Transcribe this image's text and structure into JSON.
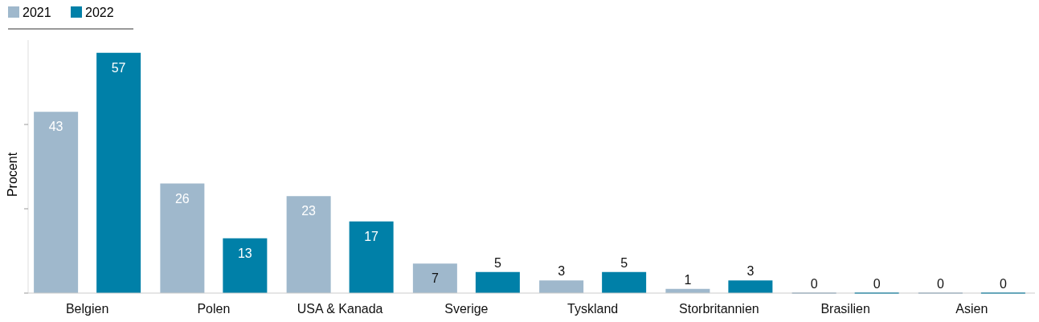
{
  "chart_data": {
    "type": "bar",
    "ylabel": "Procent",
    "categories": [
      "Belgien",
      "Polen",
      "USA & Kanada",
      "Sverige",
      "Tyskland",
      "Storbritannien",
      "Brasilien",
      "Asien"
    ],
    "series": [
      {
        "name": "2021",
        "color": "#9fb8cc",
        "values": [
          43,
          26,
          23,
          7,
          3,
          1,
          0,
          0
        ]
      },
      {
        "name": "2022",
        "color": "#0080a8",
        "values": [
          57,
          13,
          17,
          5,
          5,
          3,
          0,
          0
        ]
      }
    ],
    "ylim": [
      0,
      60
    ],
    "yticks": [
      {
        "value": 0,
        "label": null
      },
      {
        "value": 20,
        "label": null
      },
      {
        "value": 40,
        "label": null
      }
    ],
    "tick_labels": "x",
    "data_labels": true,
    "legend": "top left",
    "grid": false
  }
}
